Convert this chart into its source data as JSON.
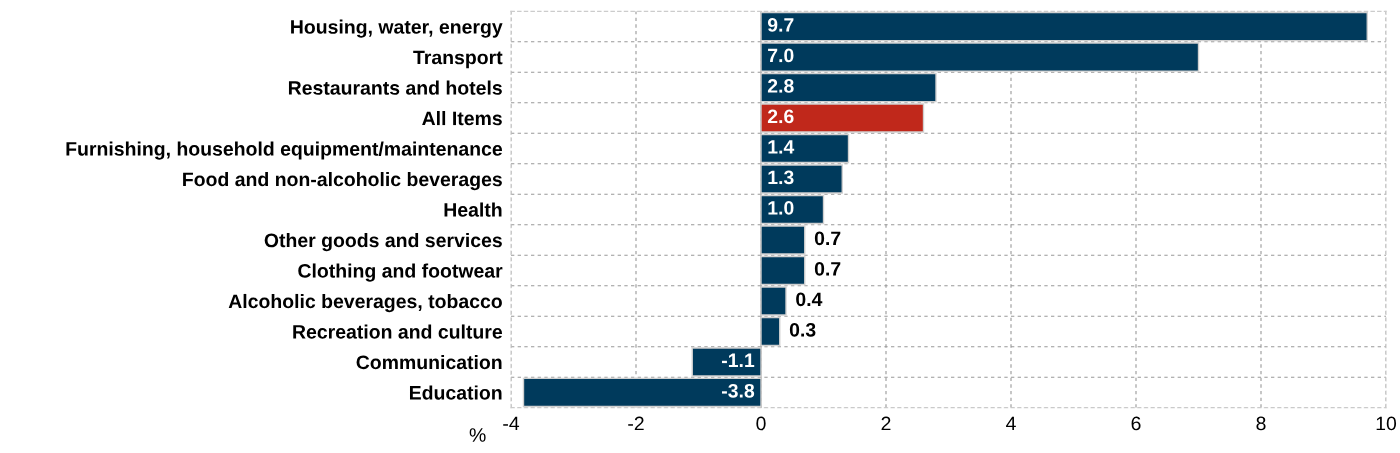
{
  "chart_data": {
    "type": "bar",
    "orientation": "horizontal",
    "xlabel": "%",
    "categories": [
      "Housing, water, energy",
      "Transport",
      "Restaurants and hotels",
      "All Items",
      "Furnishing, household equipment/maintenance",
      "Food and non-alcoholic beverages",
      "Health",
      "Other goods and services",
      "Clothing and footwear",
      "Alcoholic beverages, tobacco",
      "Recreation and culture",
      "Communication",
      "Education"
    ],
    "values": [
      9.7,
      7.0,
      2.8,
      2.6,
      1.4,
      1.3,
      1.0,
      0.7,
      0.7,
      0.4,
      0.3,
      -1.1,
      -3.8
    ],
    "value_labels": [
      "9.7",
      "7.0",
      "2.8",
      "2.6",
      "1.4",
      "1.3",
      "1.0",
      "0.7",
      "0.7",
      "0.4",
      "0.3",
      "-1.1",
      "-3.8"
    ],
    "colors": [
      "#003a5c",
      "#003a5c",
      "#003a5c",
      "#c0281b",
      "#003a5c",
      "#003a5c",
      "#003a5c",
      "#003a5c",
      "#003a5c",
      "#003a5c",
      "#003a5c",
      "#003a5c",
      "#003a5c"
    ],
    "xlim": [
      -4,
      10
    ],
    "xticks": [
      -4,
      -2,
      0,
      2,
      4,
      6,
      8,
      10
    ],
    "grid": true
  }
}
